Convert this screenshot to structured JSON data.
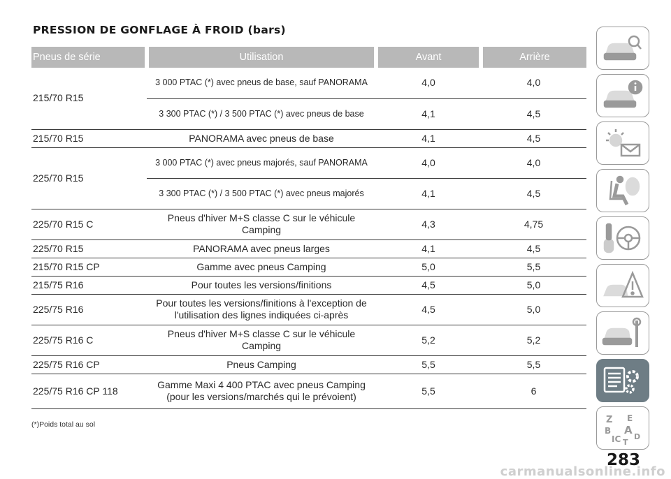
{
  "page_title": "PRESSION DE GONFLAGE À FROID (bars)",
  "table": {
    "headers": [
      "Pneus de série",
      "Utilisation",
      "Avant",
      "Arrière"
    ],
    "rows": [
      {
        "tyre": "215/70 R15",
        "use": "3 000 PTAC (*) avec pneus de base, sauf PANORAMA",
        "front": "4,0",
        "rear": "4,0"
      },
      {
        "tyre": "",
        "use": "3 300 PTAC (*) / 3 500 PTAC (*) avec pneus de base",
        "front": "4,1",
        "rear": "4,5"
      },
      {
        "tyre": "215/70 R15",
        "use": "PANORAMA avec pneus de base",
        "front": "4,1",
        "rear": "4,5"
      },
      {
        "tyre": "225/70 R15",
        "use": "3 000 PTAC (*) avec pneus majorés, sauf PANORAMA",
        "front": "4,0",
        "rear": "4,0"
      },
      {
        "tyre": "",
        "use": "3 300 PTAC (*) / 3 500 PTAC (*) avec pneus majorés",
        "front": "4,1",
        "rear": "4,5"
      },
      {
        "tyre": "225/70 R15 C",
        "use": "Pneus d'hiver M+S classe C sur le véhicule Camping",
        "front": "4,3",
        "rear": "4,75"
      },
      {
        "tyre": "225/70 R15",
        "use": "PANORAMA avec pneus larges",
        "front": "4,1",
        "rear": "4,5"
      },
      {
        "tyre": "215/70 R15 CP",
        "use": "Gamme avec pneus Camping",
        "front": "5,0",
        "rear": "5,5"
      },
      {
        "tyre": "215/75 R16",
        "use": "Pour toutes les versions/finitions",
        "front": "4,5",
        "rear": "5,0"
      },
      {
        "tyre": "225/75 R16",
        "use": "Pour toutes les versions/finitions à l'exception de l'utilisation des lignes indiquées ci-après",
        "front": "4,5",
        "rear": "5,0"
      },
      {
        "tyre": "225/75 R16 C",
        "use": "Pneus d'hiver M+S classe C sur le véhicule Camping",
        "front": "5,2",
        "rear": "5,2"
      },
      {
        "tyre": "225/75 R16 CP",
        "use": "Pneus Camping",
        "front": "5,5",
        "rear": "5,5"
      },
      {
        "tyre": "225/75 R16 CP 118",
        "use": "Gamme Maxi 4 400 PTAC avec pneus Camping (pour les versions/marchés qui le prévoient)",
        "front": "5,5",
        "rear": "6"
      }
    ]
  },
  "footnote": "(*)Poids total au sol",
  "page_number": "283",
  "watermark": "carmanualsonline.info",
  "nav_tabs": [
    {
      "icon": "car-search-icon",
      "active": false
    },
    {
      "icon": "car-info-icon",
      "active": false
    },
    {
      "icon": "warning-light-message-icon",
      "active": false
    },
    {
      "icon": "airbag-seat-icon",
      "active": false
    },
    {
      "icon": "key-steering-wheel-icon",
      "active": false
    },
    {
      "icon": "emergency-triangle-car-icon",
      "active": false
    },
    {
      "icon": "car-maintenance-tools-icon",
      "active": false
    },
    {
      "icon": "specifications-gears-icon",
      "active": true
    },
    {
      "icon": "alphabetical-index-icon",
      "active": false
    }
  ],
  "colors": {
    "header_bg": "#b8b8b8",
    "active_tab": "#6e7d85",
    "tab_border": "#9a9a9a"
  }
}
